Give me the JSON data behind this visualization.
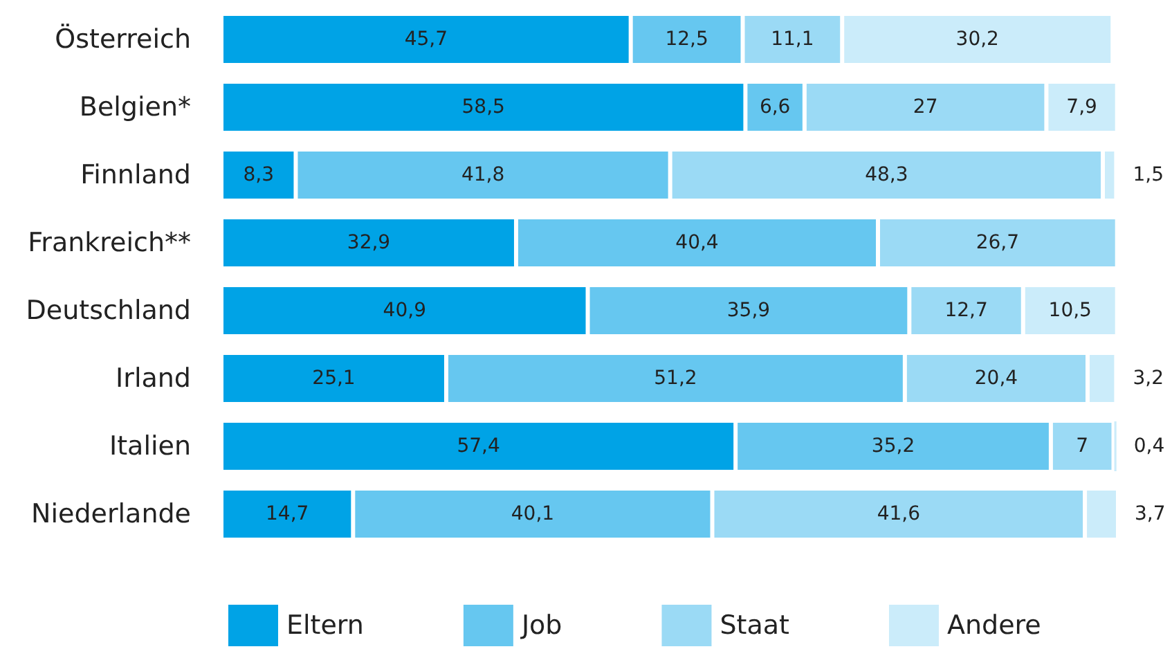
{
  "chart_data": {
    "type": "bar",
    "orientation": "horizontal",
    "stacked": true,
    "legend": "bottom",
    "categories": [
      "Österreich",
      "Belgien*",
      "Finnland",
      "Frankreich**",
      "Deutschland",
      "Irland",
      "Italien",
      "Niederlande"
    ],
    "series": [
      {
        "name": "Eltern",
        "color": "#00a3e6",
        "values": [
          45.7,
          58.5,
          8.3,
          32.9,
          40.9,
          25.1,
          57.4,
          14.7
        ],
        "value_labels": [
          "45,7",
          "58,5",
          "8,3",
          "32,9",
          "40,9",
          "25,1",
          "57,4",
          "14,7"
        ]
      },
      {
        "name": "Job",
        "color": "#66c7f0",
        "values": [
          12.5,
          6.6,
          41.8,
          40.4,
          35.9,
          51.2,
          35.2,
          40.1
        ],
        "value_labels": [
          "12,5",
          "6,6",
          "41,8",
          "40,4",
          "35,9",
          "51,2",
          "35,2",
          "40,1"
        ]
      },
      {
        "name": "Staat",
        "color": "#9bdaf5",
        "values": [
          11.1,
          27,
          48.3,
          26.7,
          12.7,
          20.4,
          7,
          41.6
        ],
        "value_labels": [
          "11,1",
          "27",
          "48,3",
          "26,7",
          "12,7",
          "20,4",
          "7",
          "41,6"
        ]
      },
      {
        "name": "Andere",
        "color": "#cbecfa",
        "values": [
          30.2,
          7.9,
          1.5,
          null,
          10.5,
          3.2,
          0.4,
          3.7
        ],
        "value_labels": [
          "30,2",
          "7,9",
          "1,5",
          null,
          "10,5",
          "3,2",
          "0,4",
          "3,7"
        ]
      }
    ]
  }
}
